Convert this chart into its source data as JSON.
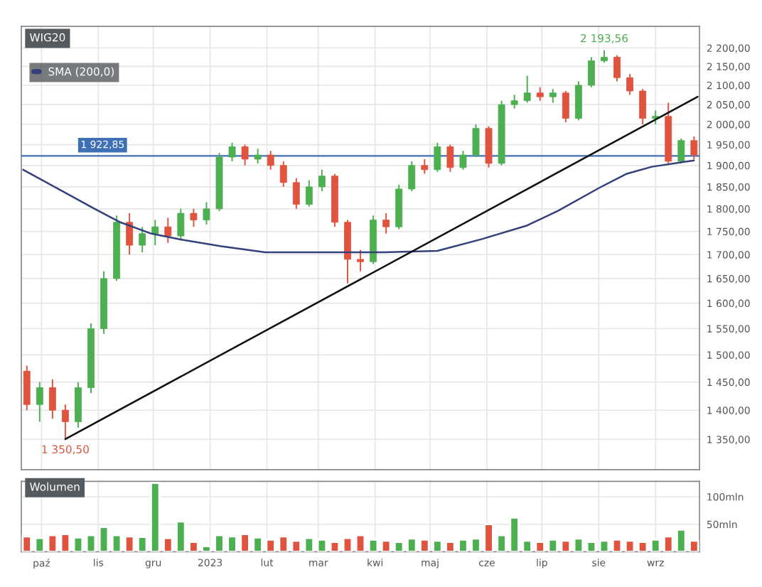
{
  "chart_data": [
    {
      "type": "candlestick",
      "title": "WIG20",
      "log": true,
      "grid": true,
      "legend": "top left",
      "tick_labels": "y",
      "x": [
        "2022-09-23",
        "2022-09-30",
        "2022-10-07",
        "2022-10-14",
        "2022-10-21",
        "2022-10-28",
        "2022-11-04",
        "2022-11-11",
        "2022-11-18",
        "2022-11-25",
        "2022-12-02",
        "2022-12-09",
        "2022-12-16",
        "2022-12-23",
        "2022-12-30",
        "2023-01-06",
        "2023-01-13",
        "2023-01-20",
        "2023-01-27",
        "2023-02-03",
        "2023-02-10",
        "2023-02-17",
        "2023-02-24",
        "2023-03-03",
        "2023-03-10",
        "2023-03-17",
        "2023-03-24",
        "2023-03-31",
        "2023-04-07",
        "2023-04-14",
        "2023-04-21",
        "2023-04-28",
        "2023-05-05",
        "2023-05-12",
        "2023-05-19",
        "2023-05-26",
        "2023-06-02",
        "2023-06-09",
        "2023-06-16",
        "2023-06-23",
        "2023-06-30",
        "2023-07-07",
        "2023-07-14",
        "2023-07-21",
        "2023-07-28",
        "2023-08-04",
        "2023-08-11",
        "2023-08-18",
        "2023-08-25",
        "2023-09-01",
        "2023-09-08",
        "2023-09-15",
        "2023-09-22"
      ],
      "ohlc": [
        [
          1470,
          1480,
          1400,
          1410
        ],
        [
          1410,
          1450,
          1380,
          1440
        ],
        [
          1440,
          1455,
          1385,
          1400
        ],
        [
          1400,
          1410,
          1350.5,
          1380
        ],
        [
          1380,
          1450,
          1370,
          1440
        ],
        [
          1440,
          1560,
          1430,
          1550
        ],
        [
          1550,
          1665,
          1540,
          1650
        ],
        [
          1650,
          1785,
          1645,
          1770
        ],
        [
          1770,
          1790,
          1700,
          1720
        ],
        [
          1720,
          1760,
          1705,
          1745
        ],
        [
          1745,
          1775,
          1720,
          1760
        ],
        [
          1760,
          1780,
          1725,
          1740
        ],
        [
          1740,
          1800,
          1730,
          1790
        ],
        [
          1790,
          1800,
          1760,
          1775
        ],
        [
          1775,
          1815,
          1765,
          1800
        ],
        [
          1800,
          1930,
          1795,
          1920
        ],
        [
          1920,
          1955,
          1910,
          1945
        ],
        [
          1945,
          1950,
          1900,
          1915
        ],
        [
          1915,
          1940,
          1905,
          1925
        ],
        [
          1925,
          1935,
          1890,
          1900
        ],
        [
          1900,
          1910,
          1850,
          1860
        ],
        [
          1860,
          1870,
          1800,
          1810
        ],
        [
          1810,
          1865,
          1805,
          1850
        ],
        [
          1850,
          1890,
          1840,
          1875
        ],
        [
          1875,
          1880,
          1760,
          1770
        ],
        [
          1770,
          1775,
          1640,
          1690
        ],
        [
          1690,
          1710,
          1665,
          1685
        ],
        [
          1685,
          1785,
          1680,
          1775
        ],
        [
          1775,
          1790,
          1745,
          1760
        ],
        [
          1760,
          1855,
          1755,
          1845
        ],
        [
          1845,
          1910,
          1840,
          1900
        ],
        [
          1900,
          1915,
          1880,
          1890
        ],
        [
          1890,
          1955,
          1885,
          1945
        ],
        [
          1945,
          1950,
          1885,
          1895
        ],
        [
          1895,
          1935,
          1890,
          1925
        ],
        [
          1925,
          2000,
          1920,
          1990
        ],
        [
          1990,
          1995,
          1895,
          1905
        ],
        [
          1905,
          2060,
          1900,
          2050
        ],
        [
          2050,
          2075,
          2040,
          2060
        ],
        [
          2060,
          2125,
          2055,
          2080
        ],
        [
          2080,
          2095,
          2060,
          2070
        ],
        [
          2070,
          2090,
          2055,
          2080
        ],
        [
          2080,
          2085,
          2005,
          2015
        ],
        [
          2015,
          2110,
          2010,
          2100
        ],
        [
          2100,
          2175,
          2095,
          2165
        ],
        [
          2165,
          2193.56,
          2160,
          2175
        ],
        [
          2175,
          2180,
          2110,
          2120
        ],
        [
          2120,
          2130,
          2075,
          2085
        ],
        [
          2085,
          2090,
          2000,
          2015
        ],
        [
          2015,
          2035,
          2000,
          2020
        ],
        [
          2020,
          2055,
          1905,
          1910
        ],
        [
          1910,
          1965,
          1905,
          1960
        ],
        [
          1960,
          1970,
          1915,
          1925
        ]
      ],
      "colors": [
        "#e0533f",
        "#4caf50",
        "#e0533f",
        "#e0533f",
        "#4caf50",
        "#4caf50",
        "#4caf50",
        "#4caf50",
        "#e0533f",
        "#4caf50",
        "#4caf50",
        "#e0533f",
        "#4caf50",
        "#e0533f",
        "#4caf50",
        "#4caf50",
        "#4caf50",
        "#e0533f",
        "#4caf50",
        "#e0533f",
        "#e0533f",
        "#e0533f",
        "#4caf50",
        "#4caf50",
        "#e0533f",
        "#e0533f",
        "#e0533f",
        "#4caf50",
        "#e0533f",
        "#4caf50",
        "#4caf50",
        "#e0533f",
        "#4caf50",
        "#e0533f",
        "#4caf50",
        "#4caf50",
        "#e0533f",
        "#4caf50",
        "#4caf50",
        "#4caf50",
        "#e0533f",
        "#4caf50",
        "#e0533f",
        "#4caf50",
        "#4caf50",
        "#4caf50",
        "#e0533f",
        "#e0533f",
        "#e0533f",
        "#4caf50",
        "#e0533f",
        "#4caf50",
        "#e0533f"
      ],
      "series": [
        {
          "name": "SMA (200,0)",
          "type": "line",
          "color": "#34407a",
          "x": [
            "2022-09-21",
            "2022-10-30",
            "2022-11-13",
            "2022-11-30",
            "2022-12-15",
            "2023-01-07",
            "2023-01-31",
            "2023-03-01",
            "2023-04-06",
            "2023-05-05",
            "2023-05-29",
            "2023-06-23",
            "2023-07-10",
            "2023-08-01",
            "2023-08-16",
            "2023-08-30",
            "2023-09-22"
          ],
          "values": [
            1890,
            1800,
            1770,
            1745,
            1733,
            1718,
            1705,
            1705,
            1705,
            1708,
            1733,
            1763,
            1796,
            1847,
            1880,
            1897,
            1912
          ]
        },
        {
          "type": "line",
          "color": "#111111",
          "x": [
            "2022-10-14",
            "2023-09-24"
          ],
          "values": [
            1350.5,
            2070
          ]
        }
      ],
      "ref_lines": [
        {
          "axis": "y",
          "value": 1922.85,
          "label": "1 922,85",
          "color": "#3f6fb5"
        }
      ],
      "annotations": [
        {
          "text": "2 193,56",
          "x": "2023-08-04",
          "y": 2193.56
        },
        {
          "text": "1 350,50",
          "x": "2022-10-14",
          "y": 1350.5
        }
      ],
      "xlim": [
        "2022-09-20",
        "2023-09-25"
      ],
      "xticks": [
        {
          "value": "2022-10-01",
          "label": null
        },
        {
          "value": "2022-11-01",
          "label": null
        },
        {
          "value": "2022-12-01",
          "label": null
        },
        {
          "value": "2023-01-01",
          "label": null
        },
        {
          "value": "2023-02-01",
          "label": null
        },
        {
          "value": "2023-03-01",
          "label": null
        },
        {
          "value": "2023-04-01",
          "label": null
        },
        {
          "value": "2023-05-01",
          "label": null
        },
        {
          "value": "2023-06-01",
          "label": null
        },
        {
          "value": "2023-07-01",
          "label": null
        },
        {
          "value": "2023-08-01",
          "label": null
        },
        {
          "value": "2023-09-01",
          "label": null
        }
      ],
      "ylim": [
        1300,
        2260
      ],
      "yticks": [
        {
          "value": 1350,
          "label": "1 350,00"
        },
        {
          "value": 1400,
          "label": "1 400,00"
        },
        {
          "value": 1450,
          "label": "1 450,00"
        },
        {
          "value": 1500,
          "label": "1 500,00"
        },
        {
          "value": 1550,
          "label": "1 550,00"
        },
        {
          "value": 1600,
          "label": "1 600,00"
        },
        {
          "value": 1650,
          "label": "1 650,00"
        },
        {
          "value": 1700,
          "label": "1 700,00"
        },
        {
          "value": 1750,
          "label": "1 750,00"
        },
        {
          "value": 1800,
          "label": "1 800,00"
        },
        {
          "value": 1850,
          "label": "1 850,00"
        },
        {
          "value": 1900,
          "label": "1 900,00"
        },
        {
          "value": 1950,
          "label": "1 950,00"
        },
        {
          "value": 2000,
          "label": "2 000,00"
        },
        {
          "value": 2050,
          "label": "2 050,00"
        },
        {
          "value": 2100,
          "label": "2 100,00"
        },
        {
          "value": 2150,
          "label": "2 150,00"
        },
        {
          "value": 2200,
          "label": "2 200,00"
        }
      ]
    },
    {
      "type": "bar",
      "title": "Wolumen",
      "grid": true,
      "x": [
        "2022-09-23",
        "2022-09-30",
        "2022-10-07",
        "2022-10-14",
        "2022-10-21",
        "2022-10-28",
        "2022-11-04",
        "2022-11-11",
        "2022-11-18",
        "2022-11-25",
        "2022-12-02",
        "2022-12-09",
        "2022-12-16",
        "2022-12-23",
        "2022-12-30",
        "2023-01-06",
        "2023-01-13",
        "2023-01-20",
        "2023-01-27",
        "2023-02-03",
        "2023-02-10",
        "2023-02-17",
        "2023-02-24",
        "2023-03-03",
        "2023-03-10",
        "2023-03-17",
        "2023-03-24",
        "2023-03-31",
        "2023-04-07",
        "2023-04-14",
        "2023-04-21",
        "2023-04-28",
        "2023-05-05",
        "2023-05-12",
        "2023-05-19",
        "2023-05-26",
        "2023-06-02",
        "2023-06-09",
        "2023-06-16",
        "2023-06-23",
        "2023-06-30",
        "2023-07-07",
        "2023-07-14",
        "2023-07-21",
        "2023-07-28",
        "2023-08-04",
        "2023-08-11",
        "2023-08-18",
        "2023-08-25",
        "2023-09-01",
        "2023-09-08",
        "2023-09-15",
        "2023-09-22"
      ],
      "values": [
        28,
        25,
        30,
        32,
        26,
        30,
        45,
        30,
        28,
        27,
        125,
        25,
        55,
        18,
        10,
        30,
        28,
        32,
        26,
        22,
        28,
        20,
        25,
        22,
        18,
        25,
        30,
        22,
        20,
        18,
        24,
        22,
        20,
        18,
        22,
        24,
        50,
        30,
        62,
        20,
        18,
        22,
        20,
        24,
        18,
        20,
        22,
        20,
        18,
        22,
        28,
        40,
        20
      ],
      "colors": [
        "#e0533f",
        "#4caf50",
        "#e0533f",
        "#e0533f",
        "#4caf50",
        "#4caf50",
        "#4caf50",
        "#4caf50",
        "#e0533f",
        "#4caf50",
        "#4caf50",
        "#e0533f",
        "#4caf50",
        "#e0533f",
        "#4caf50",
        "#4caf50",
        "#4caf50",
        "#e0533f",
        "#4caf50",
        "#e0533f",
        "#e0533f",
        "#e0533f",
        "#4caf50",
        "#4caf50",
        "#e0533f",
        "#e0533f",
        "#e0533f",
        "#4caf50",
        "#e0533f",
        "#4caf50",
        "#4caf50",
        "#e0533f",
        "#4caf50",
        "#e0533f",
        "#4caf50",
        "#4caf50",
        "#e0533f",
        "#4caf50",
        "#4caf50",
        "#4caf50",
        "#e0533f",
        "#4caf50",
        "#e0533f",
        "#4caf50",
        "#4caf50",
        "#4caf50",
        "#e0533f",
        "#e0533f",
        "#e0533f",
        "#4caf50",
        "#e0533f",
        "#4caf50",
        "#e0533f"
      ],
      "xlim": [
        "2022-09-20",
        "2023-09-25"
      ],
      "xticks": [
        {
          "value": "2022-10-01",
          "label": "paź"
        },
        {
          "value": "2022-11-01",
          "label": "lis"
        },
        {
          "value": "2022-12-01",
          "label": "gru"
        },
        {
          "value": "2023-01-01",
          "label": "2023"
        },
        {
          "value": "2023-02-01",
          "label": "lut"
        },
        {
          "value": "2023-03-01",
          "label": "mar"
        },
        {
          "value": "2023-04-01",
          "label": "kwi"
        },
        {
          "value": "2023-05-01",
          "label": "maj"
        },
        {
          "value": "2023-06-01",
          "label": "cze"
        },
        {
          "value": "2023-07-01",
          "label": "lip"
        },
        {
          "value": "2023-08-01",
          "label": "sie"
        },
        {
          "value": "2023-09-01",
          "label": "wrz"
        }
      ],
      "ylim": [
        0,
        128
      ],
      "yticks": [
        {
          "value": 50,
          "label": "50mln"
        },
        {
          "value": 100,
          "label": "100mln"
        }
      ]
    }
  ]
}
